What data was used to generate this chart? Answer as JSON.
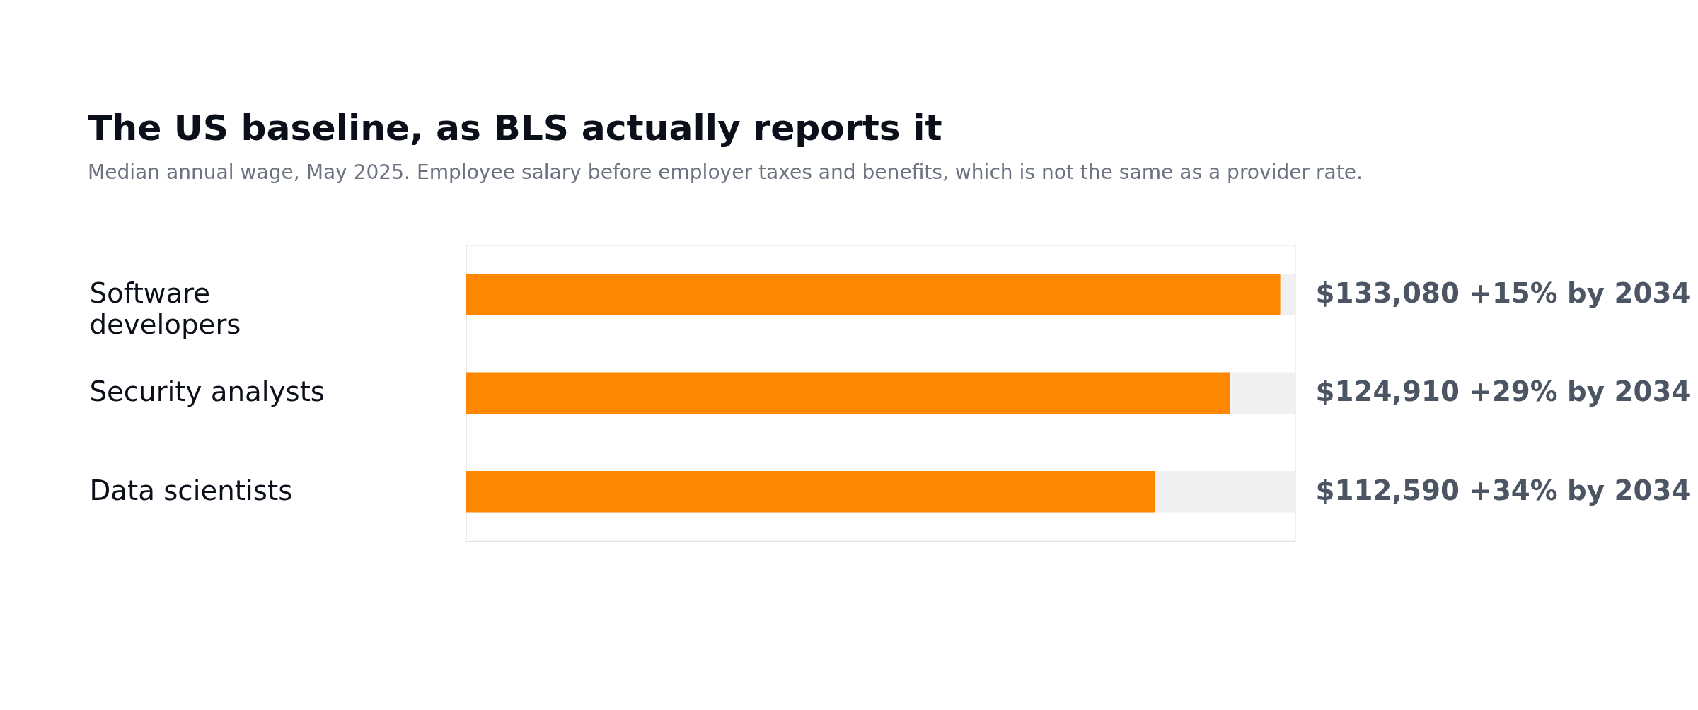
{
  "chart_data": {
    "type": "bar",
    "orientation": "horizontal",
    "title": "The US baseline, as BLS actually reports it",
    "subtitle": "Median annual wage, May 2025. Employee salary before employer taxes and benefits, which is not the same as a provider rate.",
    "categories": [
      "Software developers",
      "Security analysts",
      "Data scientists"
    ],
    "values": [
      133080,
      124910,
      112590
    ],
    "value_labels": [
      "$133,080 +15% by 2034",
      "$124,910 +29% by 2034",
      "$112,590 +34% by 2034"
    ],
    "color": "#ff8800",
    "xlim": [
      0,
      135500
    ],
    "tick_labels": "y"
  }
}
